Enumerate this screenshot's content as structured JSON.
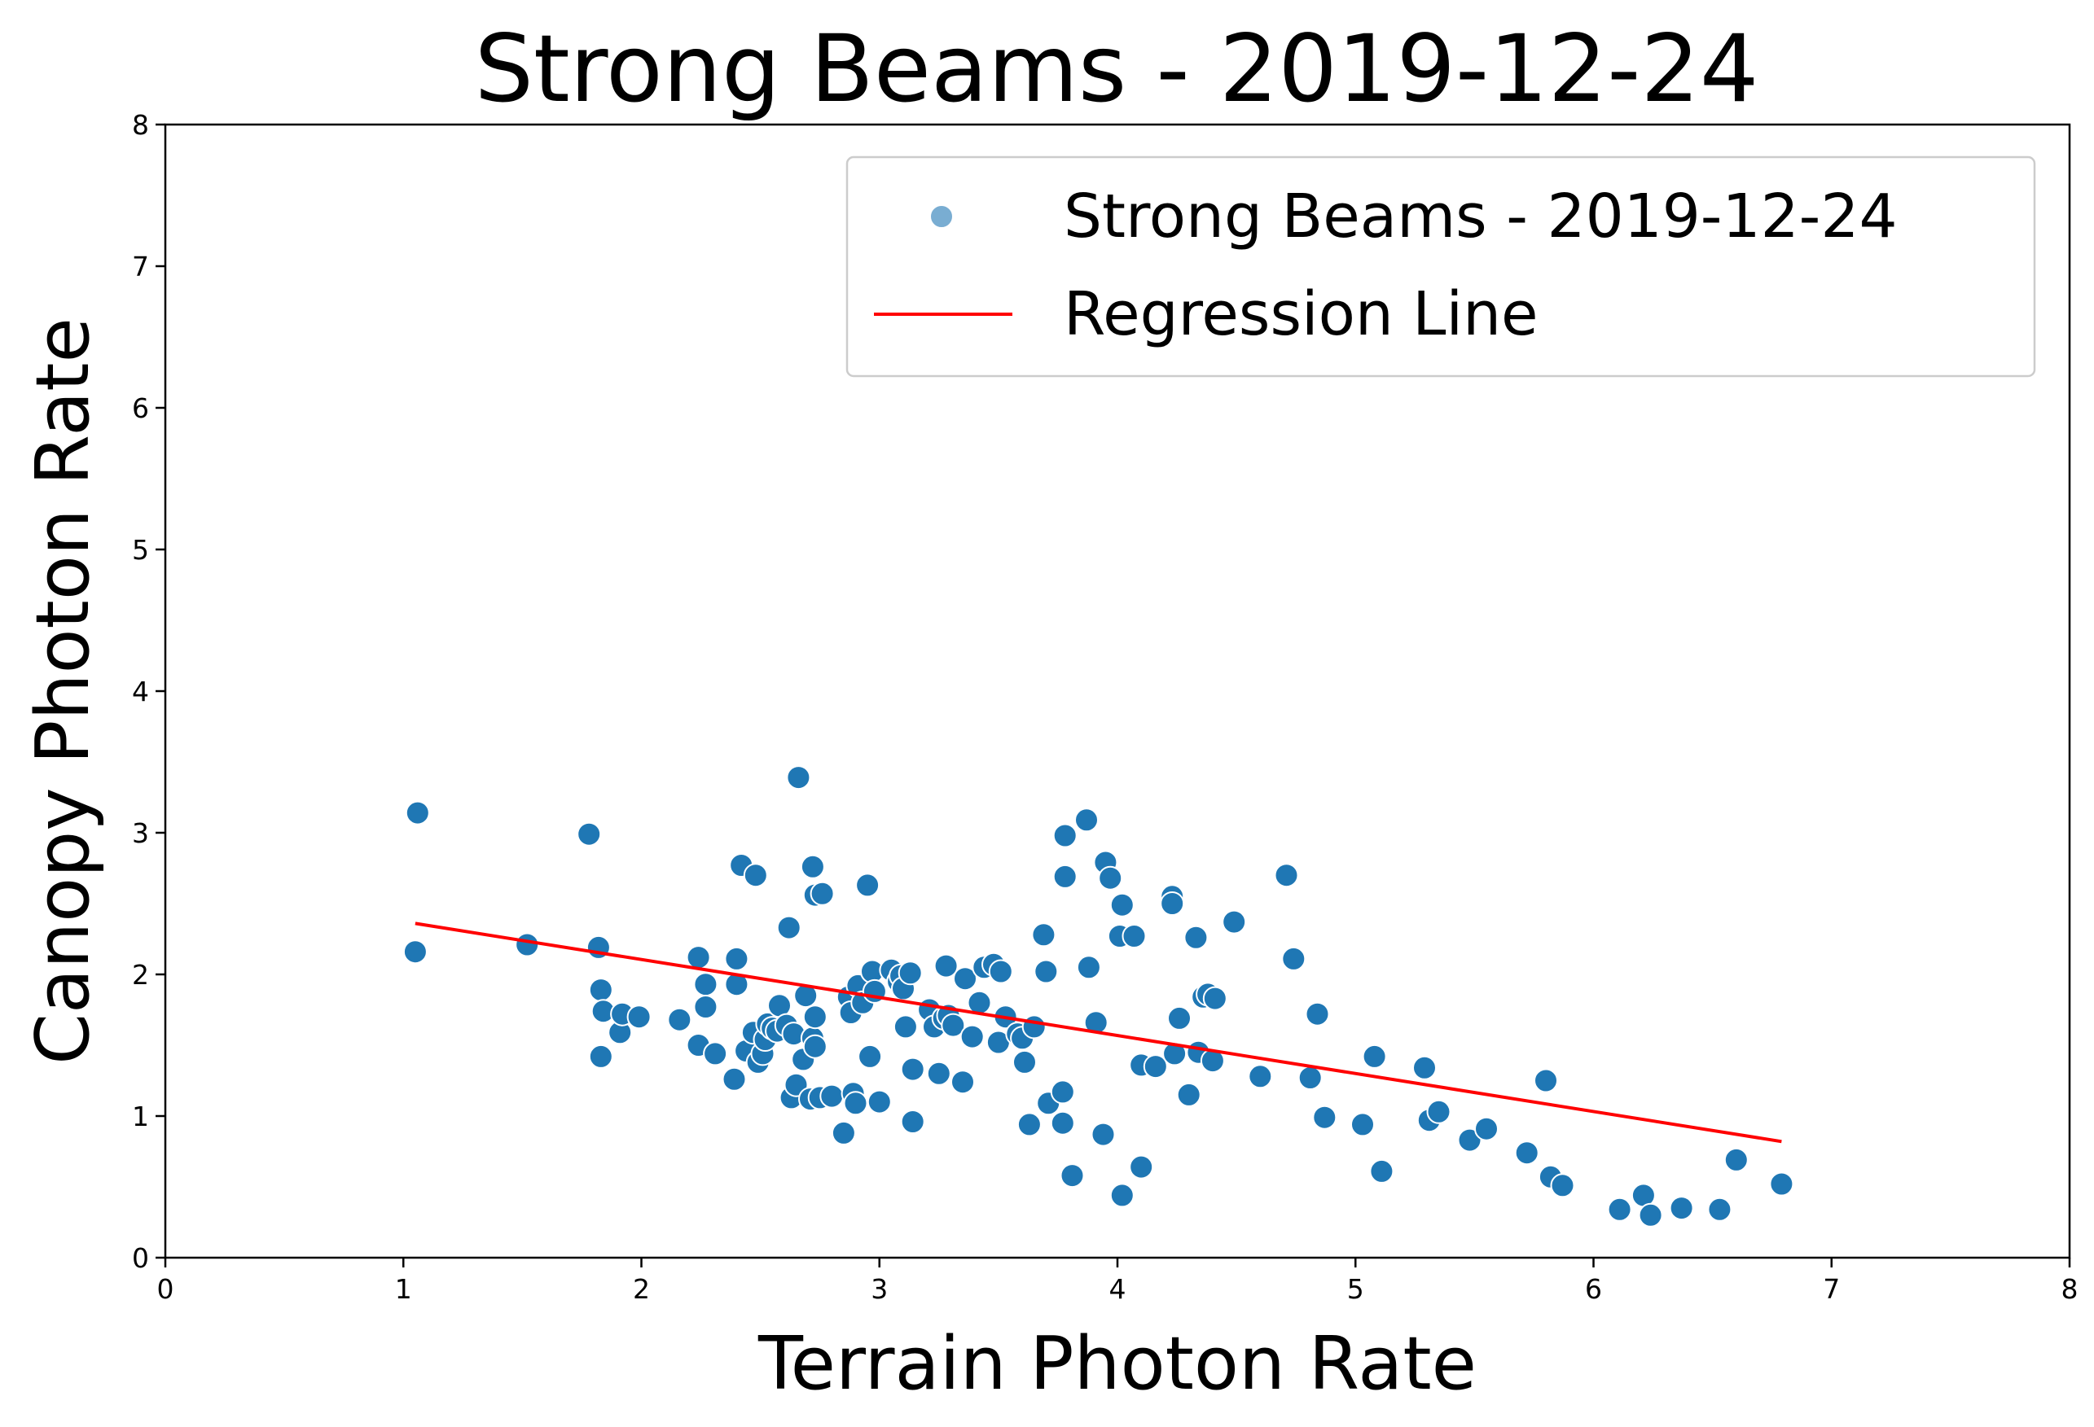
{
  "chart_data": {
    "type": "scatter",
    "title": "Strong Beams - 2019-12-24",
    "xlabel": "Terrain Photon Rate",
    "ylabel": "Canopy Photon Rate",
    "xlim": [
      0,
      8
    ],
    "ylim": [
      0,
      8
    ],
    "xticks": [
      "0",
      "1",
      "2",
      "3",
      "4",
      "5",
      "6",
      "7",
      "8"
    ],
    "yticks": [
      "0",
      "1",
      "2",
      "3",
      "4",
      "5",
      "6",
      "7",
      "8"
    ],
    "grid": false,
    "legend_position": "top-right",
    "colors": {
      "points": "#1f77b4",
      "regression": "#ff0000",
      "point_edge": "#ffffff"
    },
    "series": [
      {
        "name": "Strong Beams - 2019-12-24",
        "kind": "scatter",
        "points": [
          [
            1.06,
            3.14
          ],
          [
            1.05,
            2.16
          ],
          [
            1.52,
            2.21
          ],
          [
            1.78,
            2.99
          ],
          [
            1.82,
            2.19
          ],
          [
            1.83,
            1.89
          ],
          [
            1.84,
            1.74
          ],
          [
            1.83,
            1.42
          ],
          [
            1.91,
            1.59
          ],
          [
            1.92,
            1.72
          ],
          [
            1.99,
            1.7
          ],
          [
            2.16,
            1.68
          ],
          [
            2.24,
            2.12
          ],
          [
            2.24,
            1.5
          ],
          [
            2.27,
            1.93
          ],
          [
            2.27,
            1.77
          ],
          [
            2.31,
            1.44
          ],
          [
            2.39,
            1.26
          ],
          [
            2.4,
            2.11
          ],
          [
            2.4,
            1.93
          ],
          [
            2.42,
            2.77
          ],
          [
            2.44,
            1.46
          ],
          [
            2.47,
            1.59
          ],
          [
            2.48,
            2.7
          ],
          [
            2.49,
            1.38
          ],
          [
            2.51,
            1.44
          ],
          [
            2.52,
            1.54
          ],
          [
            2.53,
            1.65
          ],
          [
            2.55,
            1.62
          ],
          [
            2.57,
            1.6
          ],
          [
            2.58,
            1.78
          ],
          [
            2.61,
            1.64
          ],
          [
            2.62,
            2.33
          ],
          [
            2.63,
            1.13
          ],
          [
            2.64,
            1.58
          ],
          [
            2.65,
            1.22
          ],
          [
            2.66,
            3.39
          ],
          [
            2.68,
            1.4
          ],
          [
            2.69,
            1.85
          ],
          [
            2.71,
            1.12
          ],
          [
            2.72,
            2.76
          ],
          [
            2.72,
            1.55
          ],
          [
            2.73,
            1.49
          ],
          [
            2.73,
            1.7
          ],
          [
            2.73,
            2.56
          ],
          [
            2.75,
            1.13
          ],
          [
            2.76,
            2.57
          ],
          [
            2.8,
            1.14
          ],
          [
            2.85,
            0.88
          ],
          [
            2.87,
            1.84
          ],
          [
            2.88,
            1.73
          ],
          [
            2.89,
            1.16
          ],
          [
            2.9,
            1.09
          ],
          [
            2.91,
            1.92
          ],
          [
            2.93,
            1.8
          ],
          [
            2.95,
            2.63
          ],
          [
            2.96,
            1.42
          ],
          [
            2.97,
            2.02
          ],
          [
            2.98,
            1.88
          ],
          [
            3.0,
            1.1
          ],
          [
            3.05,
            2.03
          ],
          [
            3.08,
            1.95
          ],
          [
            3.09,
            1.99
          ],
          [
            3.1,
            1.9
          ],
          [
            3.11,
            1.63
          ],
          [
            3.13,
            2.01
          ],
          [
            3.14,
            1.33
          ],
          [
            3.14,
            0.96
          ],
          [
            3.21,
            1.75
          ],
          [
            3.23,
            1.63
          ],
          [
            3.25,
            1.3
          ],
          [
            3.27,
            1.69
          ],
          [
            3.28,
            2.06
          ],
          [
            3.29,
            1.71
          ],
          [
            3.31,
            1.64
          ],
          [
            3.35,
            1.24
          ],
          [
            3.36,
            1.97
          ],
          [
            3.39,
            1.56
          ],
          [
            3.42,
            1.8
          ],
          [
            3.44,
            2.05
          ],
          [
            3.48,
            2.07
          ],
          [
            3.5,
            1.52
          ],
          [
            3.51,
            2.02
          ],
          [
            3.53,
            1.7
          ],
          [
            3.58,
            1.58
          ],
          [
            3.6,
            1.55
          ],
          [
            3.61,
            1.38
          ],
          [
            3.63,
            0.94
          ],
          [
            3.65,
            1.63
          ],
          [
            3.69,
            2.28
          ],
          [
            3.7,
            2.02
          ],
          [
            3.71,
            1.09
          ],
          [
            3.77,
            1.17
          ],
          [
            3.77,
            0.95
          ],
          [
            3.78,
            2.69
          ],
          [
            3.78,
            2.98
          ],
          [
            3.81,
            0.58
          ],
          [
            3.87,
            3.09
          ],
          [
            3.88,
            2.05
          ],
          [
            3.91,
            1.66
          ],
          [
            3.94,
            0.87
          ],
          [
            3.95,
            2.79
          ],
          [
            3.97,
            2.68
          ],
          [
            4.01,
            2.27
          ],
          [
            4.02,
            2.49
          ],
          [
            4.02,
            0.44
          ],
          [
            4.07,
            2.27
          ],
          [
            4.1,
            1.36
          ],
          [
            4.1,
            0.64
          ],
          [
            4.16,
            1.35
          ],
          [
            4.23,
            2.55
          ],
          [
            4.23,
            2.5
          ],
          [
            4.24,
            1.44
          ],
          [
            4.26,
            1.69
          ],
          [
            4.3,
            1.15
          ],
          [
            4.33,
            2.26
          ],
          [
            4.34,
            1.45
          ],
          [
            4.36,
            1.84
          ],
          [
            4.38,
            1.86
          ],
          [
            4.4,
            1.39
          ],
          [
            4.41,
            1.83
          ],
          [
            4.49,
            2.37
          ],
          [
            4.6,
            1.28
          ],
          [
            4.71,
            2.7
          ],
          [
            4.74,
            2.11
          ],
          [
            4.81,
            1.27
          ],
          [
            4.84,
            1.72
          ],
          [
            4.87,
            0.99
          ],
          [
            5.03,
            0.94
          ],
          [
            5.08,
            1.42
          ],
          [
            5.11,
            0.61
          ],
          [
            5.29,
            1.34
          ],
          [
            5.31,
            0.97
          ],
          [
            5.35,
            1.03
          ],
          [
            5.48,
            0.83
          ],
          [
            5.55,
            0.91
          ],
          [
            5.72,
            0.74
          ],
          [
            5.8,
            1.25
          ],
          [
            5.82,
            0.57
          ],
          [
            5.87,
            0.51
          ],
          [
            6.11,
            0.34
          ],
          [
            6.21,
            0.44
          ],
          [
            6.24,
            0.3
          ],
          [
            6.37,
            0.35
          ],
          [
            6.53,
            0.34
          ],
          [
            6.6,
            0.69
          ],
          [
            6.79,
            0.52
          ]
        ]
      },
      {
        "name": "Regression Line",
        "kind": "line",
        "points": [
          [
            1.05,
            2.36
          ],
          [
            6.79,
            0.82
          ]
        ]
      }
    ]
  }
}
